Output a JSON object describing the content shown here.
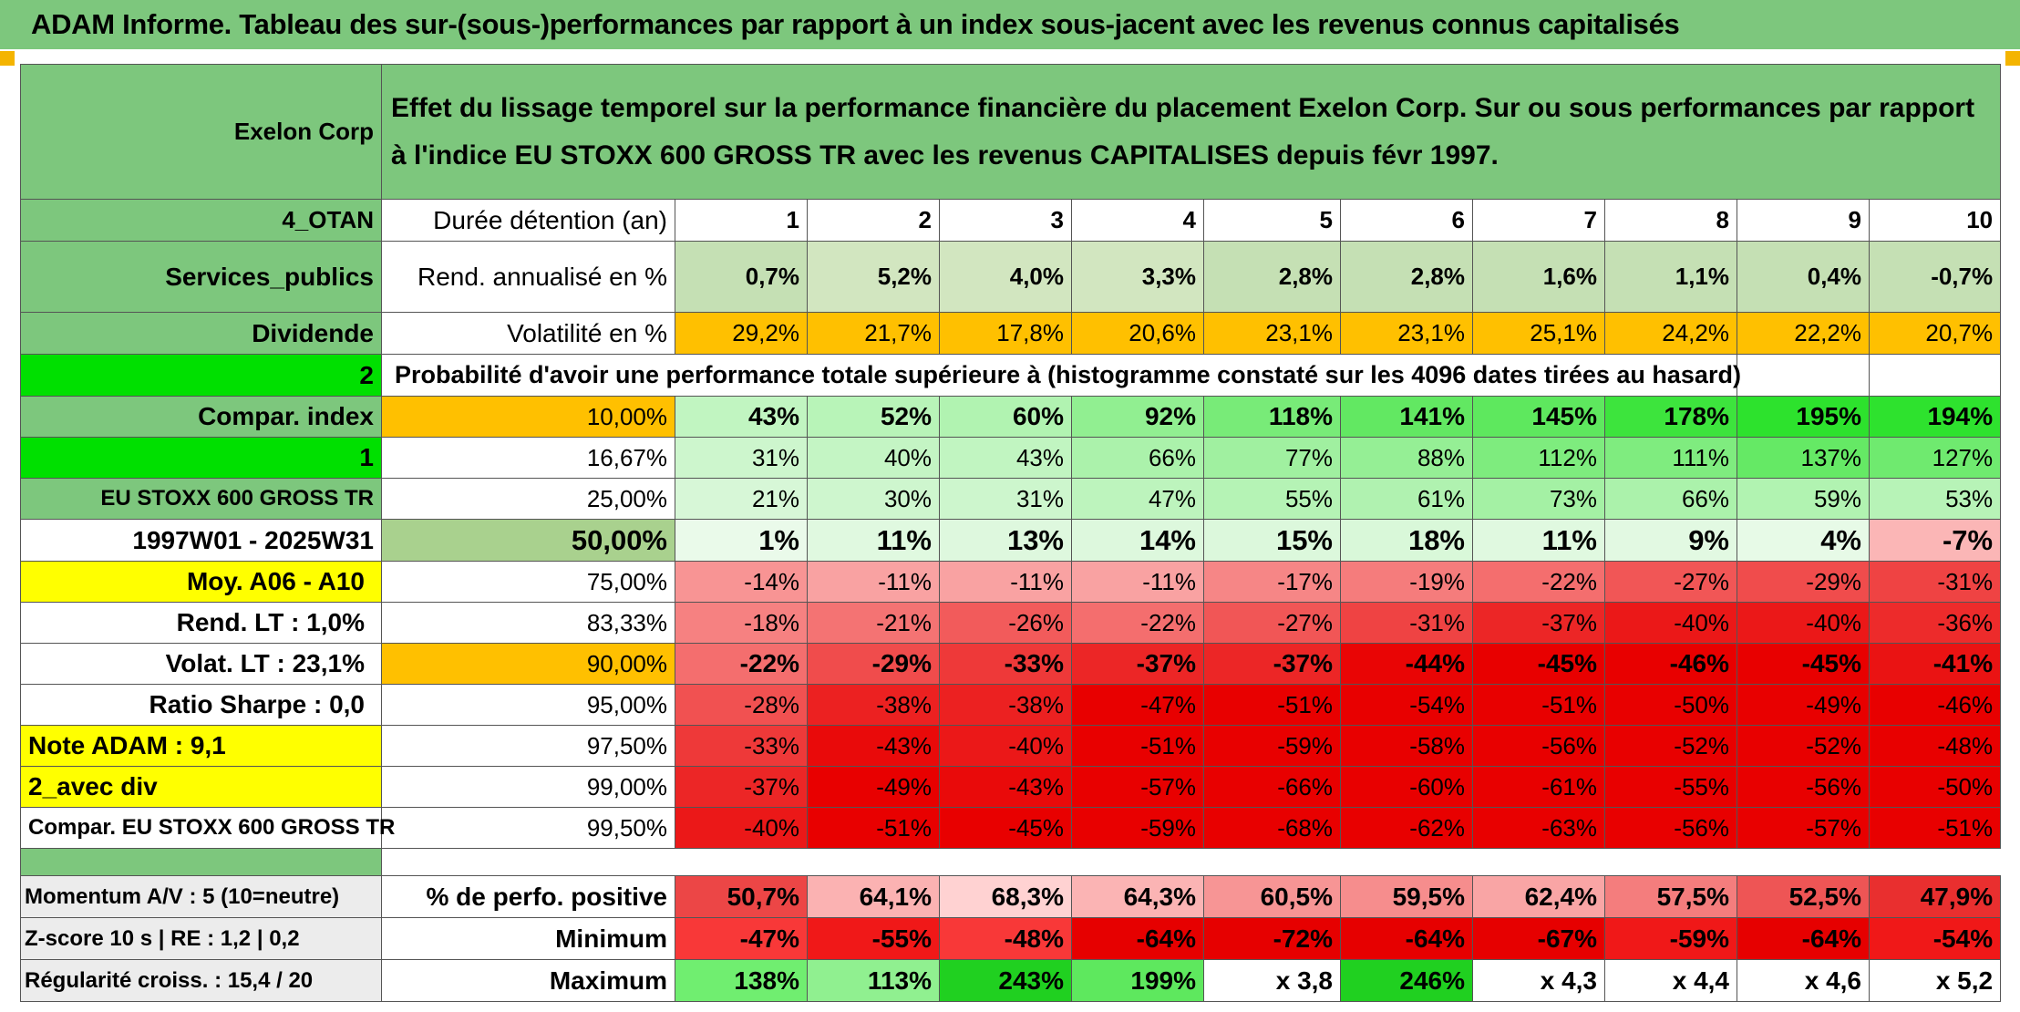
{
  "header": {
    "title": "ADAM Informe. Tableau des sur-(sous-)performances par rapport à un index sous-jacent avec les revenus connus capitalisés"
  },
  "left": {
    "company": "Exelon Corp",
    "code": "4_OTAN",
    "sector": "Services_publics",
    "dividend_label": "Dividende",
    "dividend_value": "2",
    "compar_index_label": "Compar. index",
    "compar_index_value": "1",
    "index_name": "EU STOXX 600 GROSS TR",
    "period": "1997W01 - 2025W31",
    "moy": "Moy. A06 - A10",
    "rend_lt": "Rend. LT :   1,0%",
    "volat_lt": "Volat. LT :   23,1%",
    "ratio_sharpe": "Ratio Sharpe :    0,0",
    "note_adam": "Note ADAM : 9,1",
    "avec_div": "2_avec div",
    "compar_full": "Compar. EU STOXX 600 GROSS TR",
    "momentum": "Momentum A/V : 5 (10=neutre)",
    "zscore": "Z-score 10 s | RE : 1,2 | 0,2",
    "regularite": "Régularité croiss. : 15,4 / 20"
  },
  "description": "Effet du lissage temporel sur la performance financière du placement Exelon Corp. Sur ou sous performances par rapport à l'indice EU STOXX 600 GROSS TR avec les revenus CAPITALISES depuis févr 1997.",
  "labels": {
    "duree": "Durée détention (an)",
    "rend": "Rend. annualisé en %",
    "volat": "Volatilité en %",
    "proba": "Probabilité d'avoir une performance totale supérieure à (histogramme constaté sur les 4096 dates tirées au hasard)",
    "pct_pos": "% de perfo. positive",
    "minimum": "Minimum",
    "maximum": "Maximum"
  },
  "years": [
    "1",
    "2",
    "3",
    "4",
    "5",
    "6",
    "7",
    "8",
    "9",
    "10"
  ],
  "rend": [
    "0,7%",
    "5,2%",
    "4,0%",
    "3,3%",
    "2,8%",
    "2,8%",
    "1,6%",
    "1,1%",
    "0,4%",
    "-0,7%"
  ],
  "volat": [
    "29,2%",
    "21,7%",
    "17,8%",
    "20,6%",
    "23,1%",
    "23,1%",
    "25,1%",
    "24,2%",
    "22,2%",
    "20,7%"
  ],
  "prob_rows": [
    {
      "p": "10,00%",
      "v": [
        "43%",
        "52%",
        "60%",
        "92%",
        "118%",
        "141%",
        "145%",
        "178%",
        "195%",
        "194%"
      ]
    },
    {
      "p": "16,67%",
      "v": [
        "31%",
        "40%",
        "43%",
        "66%",
        "77%",
        "88%",
        "112%",
        "111%",
        "137%",
        "127%"
      ]
    },
    {
      "p": "25,00%",
      "v": [
        "21%",
        "30%",
        "31%",
        "47%",
        "55%",
        "61%",
        "73%",
        "66%",
        "59%",
        "53%"
      ]
    },
    {
      "p": "50,00%",
      "v": [
        "1%",
        "11%",
        "13%",
        "14%",
        "15%",
        "18%",
        "11%",
        "9%",
        "4%",
        "-7%"
      ]
    },
    {
      "p": "75,00%",
      "v": [
        "-14%",
        "-11%",
        "-11%",
        "-11%",
        "-17%",
        "-19%",
        "-22%",
        "-27%",
        "-29%",
        "-31%"
      ]
    },
    {
      "p": "83,33%",
      "v": [
        "-18%",
        "-21%",
        "-26%",
        "-22%",
        "-27%",
        "-31%",
        "-37%",
        "-40%",
        "-40%",
        "-36%"
      ]
    },
    {
      "p": "90,00%",
      "v": [
        "-22%",
        "-29%",
        "-33%",
        "-37%",
        "-37%",
        "-44%",
        "-45%",
        "-46%",
        "-45%",
        "-41%"
      ]
    },
    {
      "p": "95,00%",
      "v": [
        "-28%",
        "-38%",
        "-38%",
        "-47%",
        "-51%",
        "-54%",
        "-51%",
        "-50%",
        "-49%",
        "-46%"
      ]
    },
    {
      "p": "97,50%",
      "v": [
        "-33%",
        "-43%",
        "-40%",
        "-51%",
        "-59%",
        "-58%",
        "-56%",
        "-52%",
        "-52%",
        "-48%"
      ]
    },
    {
      "p": "99,00%",
      "v": [
        "-37%",
        "-49%",
        "-43%",
        "-57%",
        "-66%",
        "-60%",
        "-61%",
        "-55%",
        "-56%",
        "-50%"
      ]
    },
    {
      "p": "99,50%",
      "v": [
        "-40%",
        "-51%",
        "-45%",
        "-59%",
        "-68%",
        "-62%",
        "-63%",
        "-56%",
        "-57%",
        "-51%"
      ]
    }
  ],
  "pct_pos": [
    "50,7%",
    "64,1%",
    "68,3%",
    "64,3%",
    "60,5%",
    "59,5%",
    "62,4%",
    "57,5%",
    "52,5%",
    "47,9%"
  ],
  "minimum": [
    "-47%",
    "-55%",
    "-48%",
    "-64%",
    "-72%",
    "-64%",
    "-67%",
    "-59%",
    "-64%",
    "-54%"
  ],
  "maximum": [
    "138%",
    "113%",
    "243%",
    "199%",
    "x 3,8",
    "246%",
    "x 4,3",
    "x 4,4",
    "x 4,6",
    "x 5,2"
  ]
}
